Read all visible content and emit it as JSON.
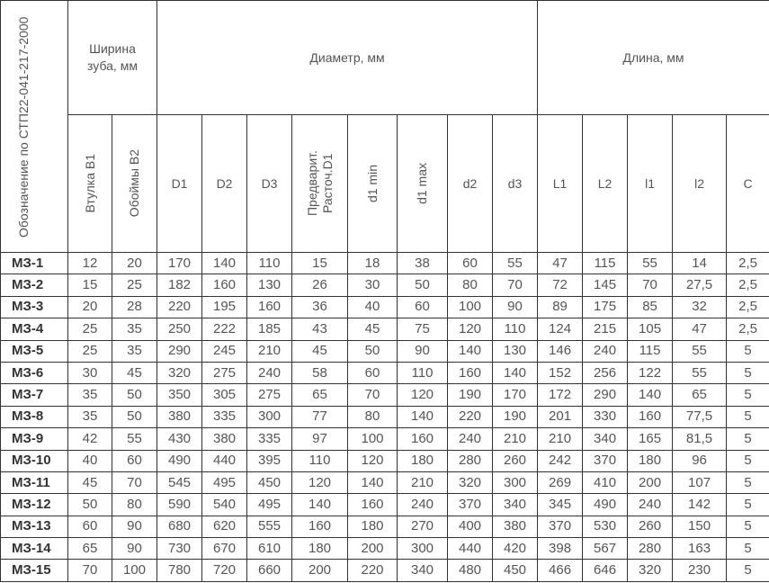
{
  "header": {
    "designation": "Обозначение по СТП22-041-217-2000",
    "tooth_width": "Ширина зуба, мм",
    "diameter": "Диаметр, мм",
    "length": "Длина, мм",
    "columns": [
      "Втулка В1",
      "Обоймы В2",
      "D1",
      "D2",
      "D3",
      "Предварит. Расточ.D1",
      "d1 min",
      "d1 max",
      "d2",
      "d3",
      "L1",
      "L2",
      "l1",
      "l2",
      "C"
    ]
  },
  "rows": [
    [
      "МЗ-1",
      12,
      20,
      170,
      140,
      110,
      15,
      18,
      38,
      60,
      55,
      47,
      115,
      55,
      14,
      "2,5"
    ],
    [
      "МЗ-2",
      15,
      25,
      182,
      160,
      130,
      26,
      30,
      50,
      80,
      70,
      72,
      145,
      70,
      "27,5",
      "2,5"
    ],
    [
      "МЗ-3",
      20,
      28,
      220,
      195,
      160,
      36,
      40,
      60,
      100,
      90,
      89,
      175,
      85,
      32,
      "2,5"
    ],
    [
      "МЗ-4",
      25,
      35,
      250,
      222,
      185,
      43,
      45,
      75,
      120,
      110,
      124,
      215,
      105,
      47,
      "2,5"
    ],
    [
      "МЗ-5",
      25,
      35,
      290,
      245,
      210,
      45,
      50,
      90,
      140,
      130,
      146,
      240,
      115,
      55,
      5
    ],
    [
      "МЗ-6",
      30,
      45,
      320,
      275,
      240,
      58,
      60,
      110,
      160,
      140,
      152,
      256,
      122,
      55,
      5
    ],
    [
      "МЗ-7",
      35,
      50,
      350,
      305,
      275,
      65,
      70,
      120,
      190,
      170,
      172,
      290,
      140,
      65,
      5
    ],
    [
      "МЗ-8",
      35,
      50,
      380,
      335,
      300,
      77,
      80,
      140,
      220,
      190,
      201,
      330,
      160,
      "77,5",
      5
    ],
    [
      "МЗ-9",
      42,
      55,
      430,
      380,
      335,
      97,
      100,
      160,
      240,
      210,
      210,
      340,
      165,
      "81,5",
      5
    ],
    [
      "МЗ-10",
      40,
      60,
      490,
      440,
      395,
      110,
      120,
      180,
      280,
      260,
      242,
      370,
      180,
      96,
      5
    ],
    [
      "МЗ-11",
      45,
      70,
      545,
      495,
      450,
      120,
      140,
      210,
      320,
      300,
      269,
      410,
      200,
      107,
      5
    ],
    [
      "МЗ-12",
      50,
      80,
      590,
      540,
      495,
      140,
      160,
      240,
      370,
      340,
      345,
      490,
      240,
      142,
      5
    ],
    [
      "МЗ-13",
      60,
      90,
      680,
      620,
      555,
      160,
      180,
      270,
      400,
      380,
      370,
      530,
      260,
      150,
      5
    ],
    [
      "МЗ-14",
      65,
      90,
      730,
      670,
      610,
      180,
      200,
      300,
      440,
      420,
      398,
      567,
      280,
      163,
      5
    ],
    [
      "МЗ-15",
      70,
      100,
      780,
      720,
      660,
      200,
      220,
      340,
      480,
      450,
      466,
      646,
      320,
      230,
      5
    ]
  ]
}
